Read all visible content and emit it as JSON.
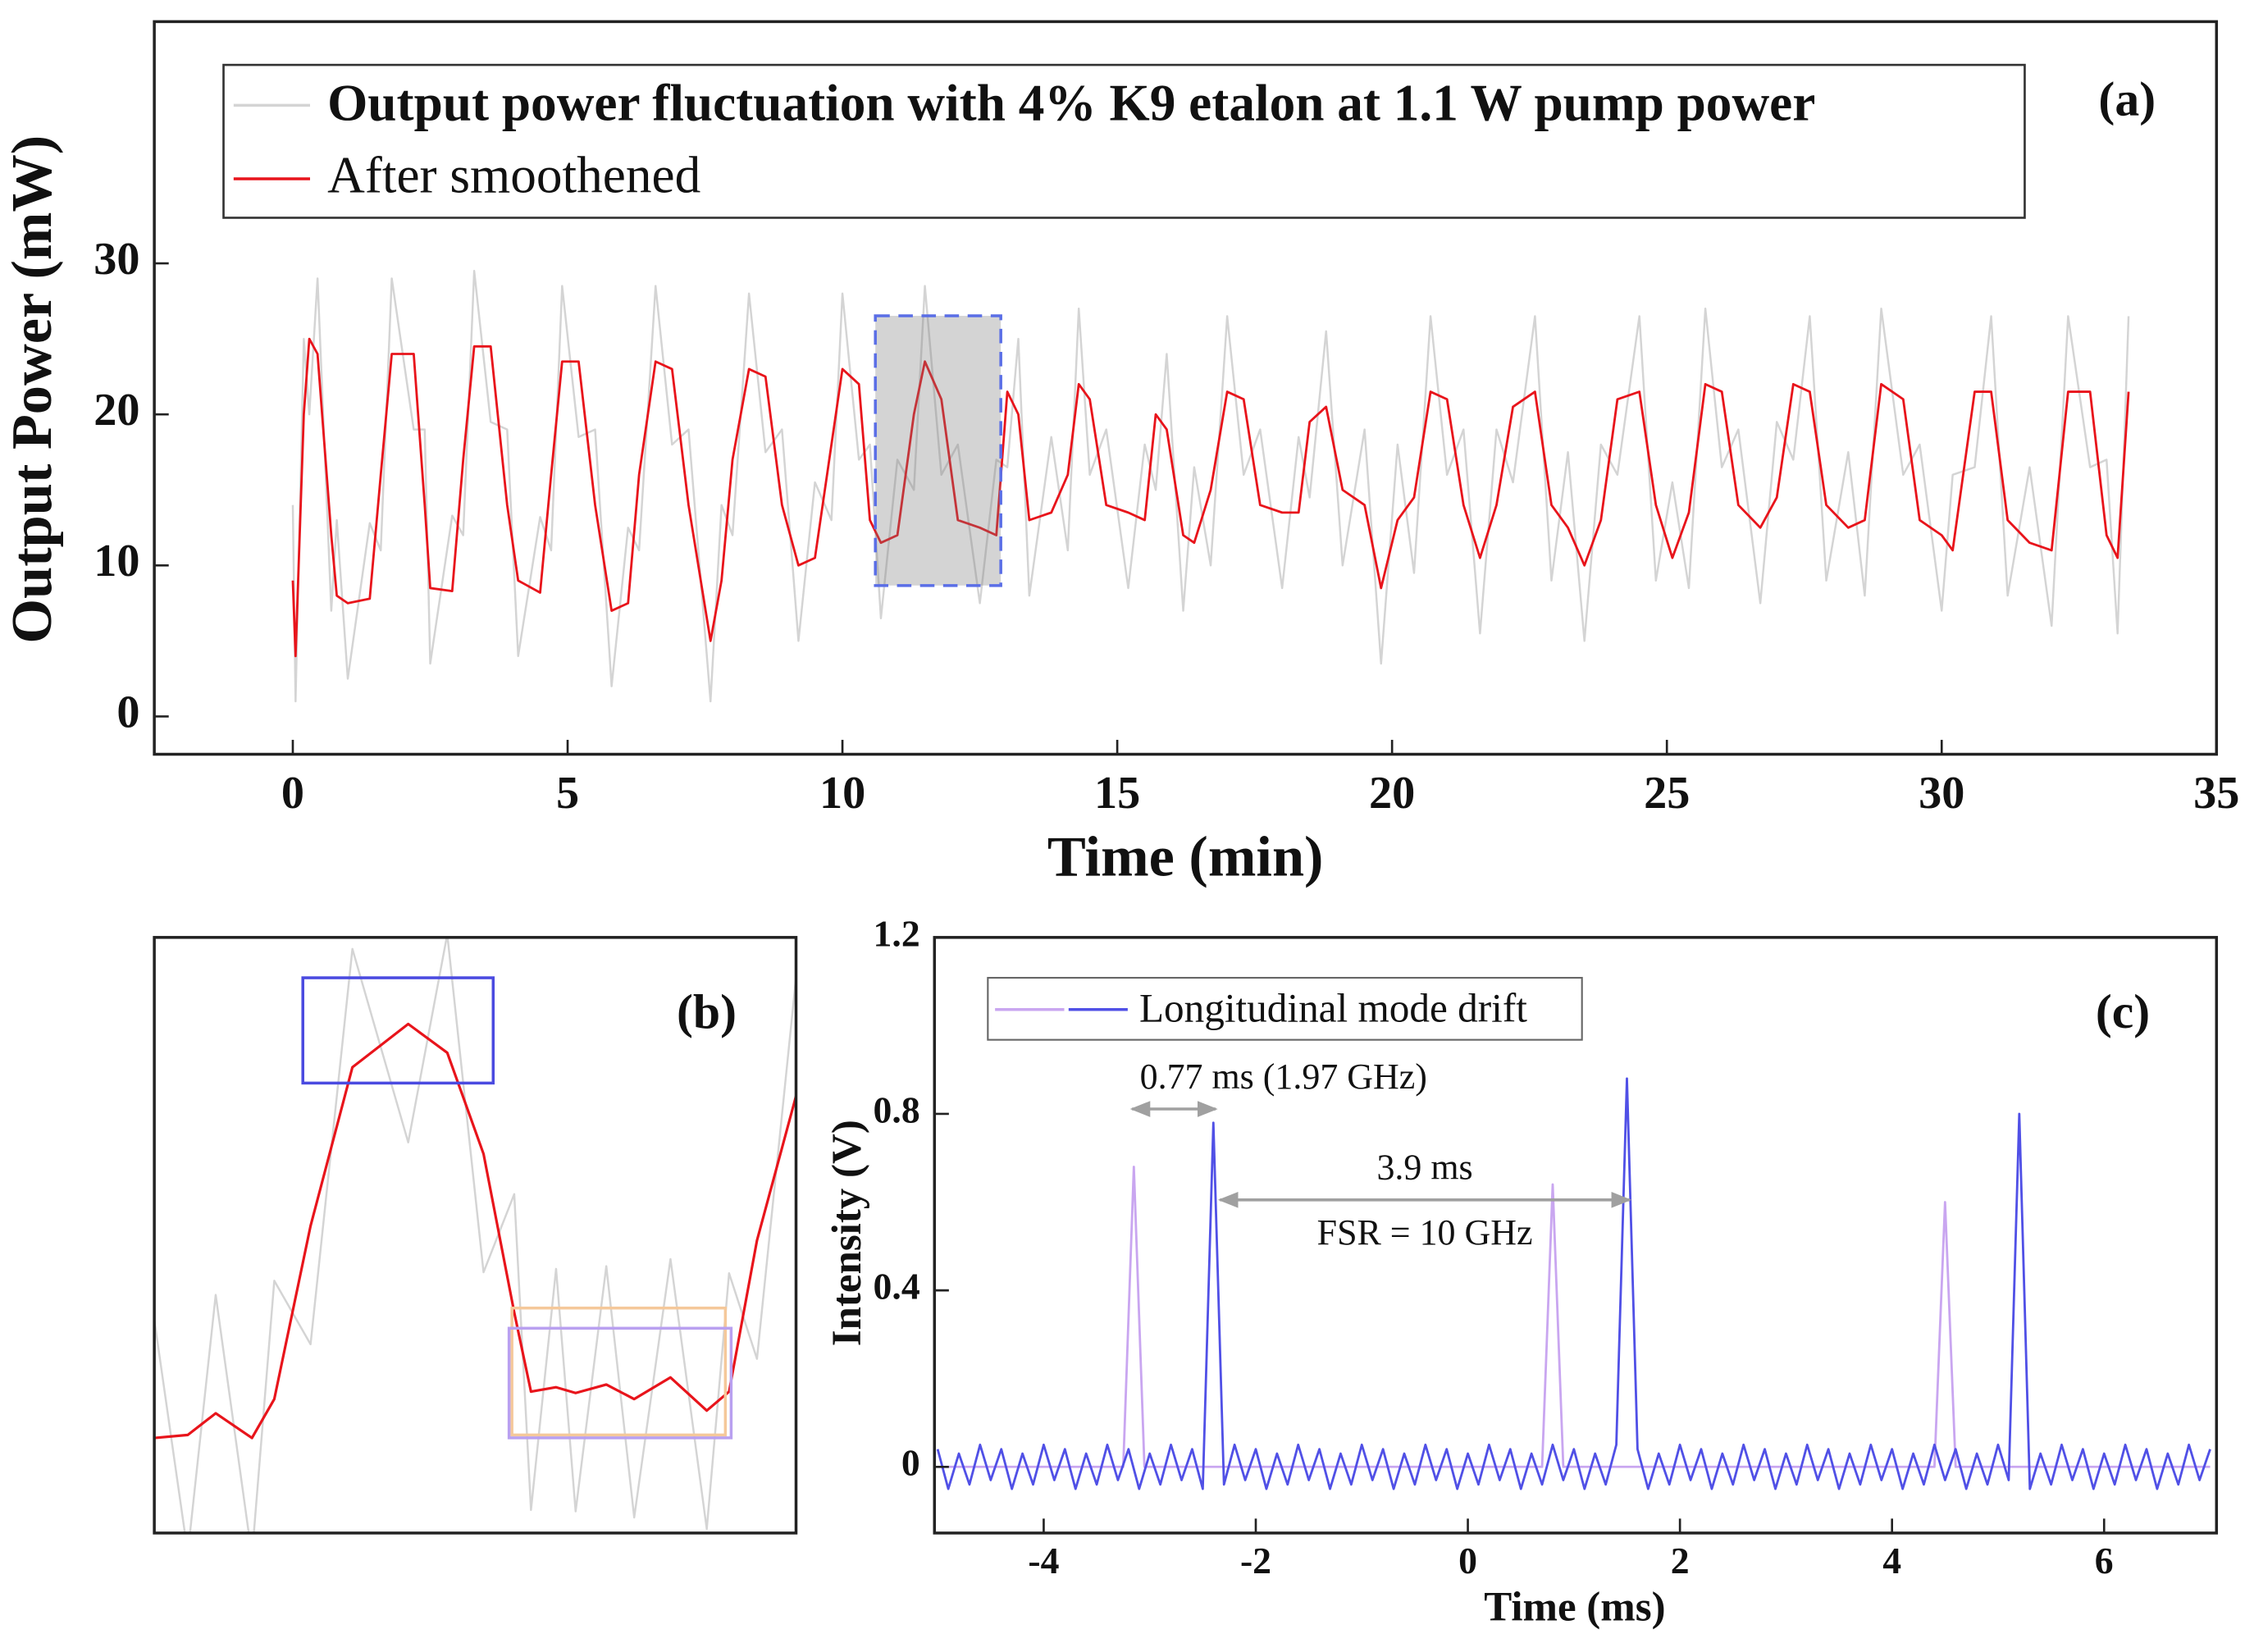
{
  "chart_data": [
    {
      "type": "line",
      "panel_label": "(a)",
      "xlabel": "Time (min)",
      "ylabel": "Output Power (mW)",
      "xlim": [
        -2.52,
        35
      ],
      "ylim": [
        -2.5,
        46
      ],
      "xticks": [
        0,
        5,
        10,
        15,
        20,
        25,
        30,
        35
      ],
      "yticks": [
        0,
        10,
        20,
        30
      ],
      "x": [
        0,
        0.05,
        0.2,
        0.3,
        0.45,
        0.7,
        0.8,
        1.0,
        1.4,
        1.6,
        1.8,
        2.2,
        2.4,
        2.5,
        2.9,
        3.1,
        3.3,
        3.6,
        3.9,
        4.1,
        4.5,
        4.7,
        4.9,
        5.2,
        5.5,
        5.8,
        6.1,
        6.3,
        6.6,
        6.9,
        7.2,
        7.6,
        7.8,
        8.0,
        8.3,
        8.6,
        8.9,
        9.2,
        9.5,
        9.8,
        10.0,
        10.3,
        10.5,
        10.7,
        11.0,
        11.3,
        11.5,
        11.8,
        12.1,
        12.5,
        12.8,
        13.0,
        13.2,
        13.4,
        13.8,
        14.1,
        14.3,
        14.5,
        14.8,
        15.2,
        15.5,
        15.7,
        15.9,
        16.2,
        16.4,
        16.7,
        17.0,
        17.3,
        17.6,
        18.0,
        18.3,
        18.5,
        18.8,
        19.1,
        19.5,
        19.8,
        20.1,
        20.4,
        20.7,
        21.0,
        21.3,
        21.6,
        21.9,
        22.2,
        22.6,
        22.9,
        23.2,
        23.5,
        23.8,
        24.1,
        24.5,
        24.8,
        25.1,
        25.4,
        25.7,
        26.0,
        26.3,
        26.7,
        27.0,
        27.3,
        27.6,
        27.9,
        28.3,
        28.6,
        28.9,
        29.3,
        29.6,
        30.0,
        30.2,
        30.6,
        30.9,
        31.2,
        31.6,
        32.0,
        32.3,
        32.7,
        33.0,
        33.2,
        33.4
      ],
      "series": [
        {
          "name": "Output power fluctuation with 4% K9 etalon at 1.1 W pump power",
          "color": "#d4d4d4",
          "values": [
            14,
            1,
            25,
            20,
            29,
            7,
            13,
            2.5,
            12.8,
            11,
            29,
            19,
            19,
            3.5,
            13.3,
            12,
            29.5,
            19.5,
            19,
            4,
            13.2,
            11,
            28.5,
            18.5,
            19,
            2,
            12.5,
            11,
            28.5,
            18,
            19,
            1,
            14,
            12,
            28,
            17.5,
            19,
            5,
            15.5,
            13,
            28,
            17,
            18,
            6.5,
            17,
            15,
            28.5,
            16,
            18,
            7.5,
            17,
            16.5,
            25,
            8,
            18.5,
            11,
            27,
            16,
            19,
            8.5,
            18,
            15,
            24,
            7,
            16.5,
            10,
            26.5,
            16,
            19,
            8.5,
            18.5,
            14.5,
            25.5,
            10,
            19,
            3.5,
            18,
            9.5,
            26.5,
            16,
            19,
            5.5,
            19,
            15.5,
            26.5,
            9,
            17.5,
            5,
            18,
            16,
            26.5,
            9,
            15.5,
            8.5,
            27,
            16.5,
            19,
            7.5,
            19.5,
            17,
            26.5,
            9,
            17.5,
            8,
            27,
            16,
            18,
            7,
            16,
            16.5,
            26.5,
            8,
            16.5,
            6,
            26.5,
            16.5,
            17,
            5.5,
            26.5
          ]
        },
        {
          "name": "After smoothened",
          "color": "#e8141b",
          "values": [
            9,
            4,
            20,
            25,
            24,
            12,
            8,
            7.5,
            7.8,
            16,
            24,
            24,
            14,
            8.5,
            8.3,
            17,
            24.5,
            24.5,
            14,
            9,
            8.2,
            16,
            23.5,
            23.5,
            14,
            7,
            7.5,
            16,
            23.5,
            23,
            14,
            5,
            9,
            17,
            23,
            22.5,
            14,
            10,
            10.5,
            18,
            23,
            22,
            13,
            11.5,
            12,
            20,
            23.5,
            21,
            13,
            12.5,
            12,
            21.5,
            20,
            13,
            13.5,
            16,
            22,
            21,
            14,
            13.5,
            13,
            20,
            19,
            12,
            11.5,
            15,
            21.5,
            21,
            14,
            13.5,
            13.5,
            19.5,
            20.5,
            15,
            14,
            8.5,
            13,
            14.5,
            21.5,
            21,
            14,
            10.5,
            14,
            20.5,
            21.5,
            14,
            12.5,
            10,
            13,
            21,
            21.5,
            14,
            10.5,
            13.5,
            22,
            21.5,
            14,
            12.5,
            14.5,
            22,
            21.5,
            14,
            12.5,
            13,
            22,
            21,
            13,
            12,
            11,
            21.5,
            21.5,
            13,
            11.5,
            11,
            21.5,
            21.5,
            12,
            10.5,
            21.5
          ]
        }
      ]
    },
    {
      "type": "line",
      "panel_label": "(b)",
      "xlim": [
        10.6,
        12.9
      ],
      "ylim": [
        8.45,
        26.06
      ],
      "x": [
        10.6,
        10.72,
        10.82,
        10.95,
        11.03,
        11.16,
        11.31,
        11.51,
        11.65,
        11.78,
        11.89,
        11.95,
        12.04,
        12.11,
        12.22,
        12.32,
        12.45,
        12.58,
        12.66,
        12.76,
        12.9
      ],
      "series": [
        {
          "color": "#d4d4d4",
          "values": [
            14.76,
            7.85,
            15.49,
            7.76,
            15.91,
            14.03,
            25.72,
            20,
            26.15,
            16.16,
            18.47,
            9.13,
            16.26,
            9.09,
            16.34,
            8.91,
            16.55,
            8.57,
            16.13,
            13.6,
            24.87
          ]
        },
        {
          "color": "#e8141b",
          "values": [
            11.26,
            11.35,
            11.99,
            11.26,
            12.41,
            17.53,
            22.22,
            23.5,
            22.65,
            19.66,
            14.97,
            12.63,
            12.76,
            12.59,
            12.84,
            12.41,
            13.05,
            12.07,
            12.63,
            17.1,
            21.37
          ]
        }
      ]
    },
    {
      "type": "line",
      "panel_label": "(c)",
      "xlabel": "Time (ms)",
      "ylabel": "Intensity (V)",
      "xlim": [
        -5.03,
        7.06
      ],
      "ylim": [
        -0.15,
        1.2
      ],
      "xticks": [
        -4,
        -2,
        0,
        2,
        4,
        6
      ],
      "yticks": [
        0,
        0.4,
        0.8,
        1.2
      ],
      "annotations": [
        "0.77 ms (1.97 GHz)",
        "3.9 ms",
        "FSR = 10 GHz"
      ],
      "series": [
        {
          "color": "#c9a6f0",
          "x": [
            -5,
            -3.25,
            -3.15,
            -3.05,
            0.7,
            0.8,
            0.9,
            4.4,
            4.5,
            4.6,
            7
          ],
          "values": [
            0,
            0,
            0.68,
            0,
            0,
            0.64,
            0,
            0,
            0.6,
            0,
            0
          ]
        },
        {
          "name": "Longitudinal mode drift",
          "color": "#5050e6",
          "x": [
            -5,
            -4.9,
            -4.8,
            -4.7,
            -4.6,
            -4.5,
            -4.4,
            -4.3,
            -4.2,
            -4.1,
            -4,
            -3.9,
            -3.8,
            -3.7,
            -3.6,
            -3.5,
            -3.4,
            -3.3,
            -3.2,
            -3.1,
            -3,
            -2.9,
            -2.8,
            -2.7,
            -2.6,
            -2.5,
            -2.4,
            -2.3,
            -2.2,
            -2.1,
            -2,
            -1.9,
            -1.8,
            -1.7,
            -1.6,
            -1.5,
            -1.4,
            -1.3,
            -1.2,
            -1.1,
            -1,
            -0.9,
            -0.8,
            -0.7,
            -0.6,
            -0.5,
            -0.4,
            -0.3,
            -0.2,
            -0.1,
            0,
            0.1,
            0.2,
            0.3,
            0.4,
            0.5,
            0.6,
            0.7,
            0.8,
            0.9,
            1,
            1.1,
            1.2,
            1.3,
            1.4,
            1.5,
            1.6,
            1.7,
            1.8,
            1.9,
            2,
            2.1,
            2.2,
            2.3,
            2.4,
            2.5,
            2.6,
            2.7,
            2.8,
            2.9,
            3,
            3.1,
            3.2,
            3.3,
            3.4,
            3.5,
            3.6,
            3.7,
            3.8,
            3.9,
            4,
            4.1,
            4.2,
            4.3,
            4.4,
            4.5,
            4.6,
            4.7,
            4.8,
            4.9,
            5,
            5.1,
            5.2,
            5.3,
            5.4,
            5.5,
            5.6,
            5.7,
            5.8,
            5.9,
            6,
            6.1,
            6.2,
            6.3,
            6.4,
            6.5,
            6.6,
            6.7,
            6.8,
            6.9,
            7
          ],
          "values": [
            0.04,
            -0.05,
            0.03,
            -0.04,
            0.05,
            -0.03,
            0.04,
            -0.05,
            0.03,
            -0.04,
            0.05,
            -0.03,
            0.04,
            -0.05,
            0.03,
            -0.04,
            0.05,
            -0.03,
            0.04,
            -0.05,
            0.03,
            -0.04,
            0.05,
            -0.03,
            0.04,
            -0.05,
            0.78,
            -0.04,
            0.05,
            -0.03,
            0.04,
            -0.05,
            0.03,
            -0.04,
            0.05,
            -0.03,
            0.04,
            -0.05,
            0.03,
            -0.04,
            0.05,
            -0.03,
            0.04,
            -0.05,
            0.03,
            -0.04,
            0.05,
            -0.03,
            0.04,
            -0.05,
            0.03,
            -0.04,
            0.05,
            -0.03,
            0.04,
            -0.05,
            0.03,
            -0.04,
            0.05,
            -0.03,
            0.04,
            -0.05,
            0.03,
            -0.04,
            0.05,
            0.88,
            0.04,
            -0.05,
            0.03,
            -0.04,
            0.05,
            -0.03,
            0.04,
            -0.05,
            0.03,
            -0.04,
            0.05,
            -0.03,
            0.04,
            -0.05,
            0.03,
            -0.04,
            0.05,
            -0.03,
            0.04,
            -0.05,
            0.03,
            -0.04,
            0.05,
            -0.03,
            0.04,
            -0.05,
            0.03,
            -0.04,
            0.05,
            -0.03,
            0.04,
            -0.05,
            0.03,
            -0.04,
            0.05,
            -0.03,
            0.8,
            -0.05,
            0.03,
            -0.04,
            0.05,
            -0.03,
            0.04,
            -0.05,
            0.03,
            -0.04,
            0.05,
            -0.03,
            0.04,
            -0.05,
            0.03,
            -0.04,
            0.05,
            -0.03,
            0.04
          ]
        }
      ]
    }
  ]
}
